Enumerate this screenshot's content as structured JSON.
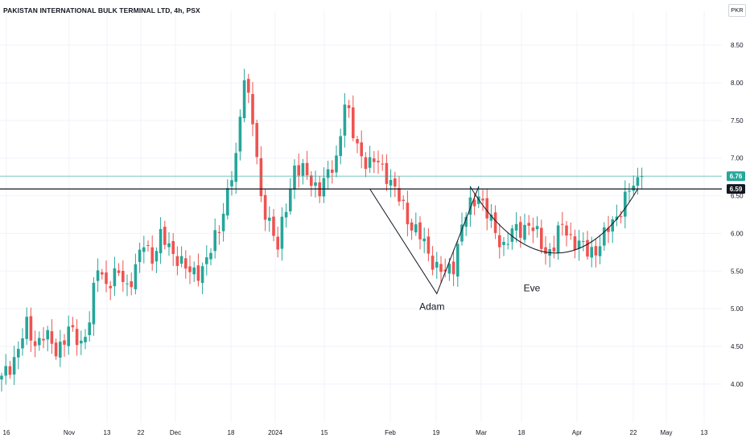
{
  "header": {
    "title": "PAKISTAN INTERNATIONAL BULK TERMINAL LTD, 4h, PSX",
    "currency": "PKR"
  },
  "price_badges": [
    {
      "label": "6.76",
      "value": 6.76,
      "bg": "#26a69a",
      "fg": "#ffffff"
    },
    {
      "label": "6.59",
      "value": 6.59,
      "bg": "#131722",
      "fg": "#ffffff"
    }
  ],
  "annotations": [
    {
      "label": "Adam"
    },
    {
      "label": "Eve"
    }
  ],
  "colors": {
    "up": "#26a69a",
    "down": "#ef5350",
    "grid": "#f0f3fa",
    "horizontal_line": "#131722",
    "last_price_line": "#26a69a",
    "pattern_line": "#131722"
  },
  "chart_data": {
    "type": "candlestick",
    "title": "PAKISTAN INTERNATIONAL BULK TERMINAL LTD, 4h, PSX",
    "y_unit": "PKR",
    "ylim": [
      3.55,
      8.95
    ],
    "y_ticks": [
      "4.00",
      "4.50",
      "5.00",
      "5.50",
      "6.00",
      "6.50",
      "7.00",
      "7.50",
      "8.00",
      "8.50"
    ],
    "x_ticks": [
      "16",
      "Nov",
      "13",
      "22",
      "Dec",
      "18",
      "2024",
      "15",
      "Feb",
      "19",
      "Mar",
      "18",
      "Apr",
      "22",
      "May",
      "13"
    ],
    "grid": true,
    "horizontal_line": 6.59,
    "last_price": 6.76,
    "annotations": [
      "Adam",
      "Eve"
    ],
    "close_path": [
      [
        0,
        4.05
      ],
      [
        3,
        4.35
      ],
      [
        6,
        4.75
      ],
      [
        8,
        4.55
      ],
      [
        10,
        4.65
      ],
      [
        13,
        4.45
      ],
      [
        16,
        4.7
      ],
      [
        19,
        4.55
      ],
      [
        21,
        4.85
      ],
      [
        23,
        5.55
      ],
      [
        25,
        5.35
      ],
      [
        28,
        5.45
      ],
      [
        30,
        5.3
      ],
      [
        32,
        5.55
      ],
      [
        34,
        5.85
      ],
      [
        36,
        5.7
      ],
      [
        38,
        5.95
      ],
      [
        40,
        5.8
      ],
      [
        42,
        5.7
      ],
      [
        45,
        5.45
      ],
      [
        48,
        5.55
      ],
      [
        50,
        5.75
      ],
      [
        52,
        6.1
      ],
      [
        54,
        6.55
      ],
      [
        56,
        6.95
      ],
      [
        58,
        8.15
      ],
      [
        60,
        7.5
      ],
      [
        62,
        6.4
      ],
      [
        64,
        6.2
      ],
      [
        66,
        5.8
      ],
      [
        68,
        6.35
      ],
      [
        70,
        6.9
      ],
      [
        72,
        6.8
      ],
      [
        74,
        6.7
      ],
      [
        76,
        6.6
      ],
      [
        78,
        6.75
      ],
      [
        80,
        7.0
      ],
      [
        82,
        7.75
      ],
      [
        84,
        7.3
      ],
      [
        86,
        7.05
      ],
      [
        88,
        6.9
      ],
      [
        90,
        6.95
      ],
      [
        92,
        6.8
      ],
      [
        94,
        6.55
      ],
      [
        96,
        6.35
      ],
      [
        98,
        6.1
      ],
      [
        100,
        5.95
      ],
      [
        102,
        5.75
      ],
      [
        104,
        5.55
      ],
      [
        106,
        5.45
      ],
      [
        108,
        5.6
      ],
      [
        110,
        6.1
      ],
      [
        112,
        6.35
      ],
      [
        114,
        6.55
      ],
      [
        116,
        6.25
      ],
      [
        118,
        6.0
      ],
      [
        120,
        5.85
      ],
      [
        122,
        6.0
      ],
      [
        124,
        6.05
      ],
      [
        126,
        6.15
      ],
      [
        128,
        5.95
      ],
      [
        130,
        5.75
      ],
      [
        132,
        5.85
      ],
      [
        134,
        6.1
      ],
      [
        136,
        5.95
      ],
      [
        138,
        5.85
      ],
      [
        140,
        5.75
      ],
      [
        142,
        5.8
      ],
      [
        144,
        5.95
      ],
      [
        146,
        6.15
      ],
      [
        148,
        6.35
      ],
      [
        150,
        6.55
      ],
      [
        152,
        6.7
      ],
      [
        153,
        6.76
      ]
    ]
  }
}
